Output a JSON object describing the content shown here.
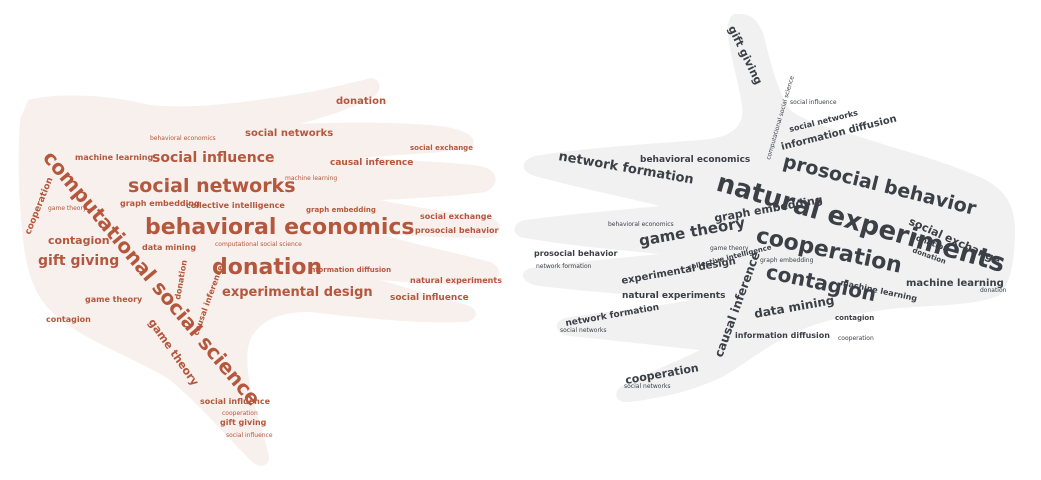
{
  "left_cloud": {
    "color": "#b5573d",
    "background": "#f8f0ed",
    "words": [
      {
        "text": "computational social science"
      },
      {
        "text": "behavioral economics"
      },
      {
        "text": "social networks"
      },
      {
        "text": "donation"
      },
      {
        "text": "social influence"
      },
      {
        "text": "experimental design"
      },
      {
        "text": "gift giving"
      },
      {
        "text": "contagion"
      },
      {
        "text": "game theory"
      },
      {
        "text": "cooperation"
      },
      {
        "text": "social networks"
      },
      {
        "text": "donation"
      },
      {
        "text": "social influence"
      },
      {
        "text": "collective intelligence"
      },
      {
        "text": "graph embedding"
      },
      {
        "text": "causal inference"
      },
      {
        "text": "machine learning"
      },
      {
        "text": "data mining"
      },
      {
        "text": "social exchange"
      },
      {
        "text": "prosocial behavior"
      },
      {
        "text": "natural experiments"
      },
      {
        "text": "information diffusion"
      },
      {
        "text": "game theory"
      },
      {
        "text": "contagion"
      },
      {
        "text": "social influence"
      },
      {
        "text": "gift giving"
      },
      {
        "text": "causal inference"
      },
      {
        "text": "social exchange"
      },
      {
        "text": "graph embedding"
      },
      {
        "text": "behavioral economics"
      },
      {
        "text": "computational social science"
      },
      {
        "text": "machine learning"
      },
      {
        "text": "donation"
      },
      {
        "text": "game theory"
      },
      {
        "text": "cooperation"
      },
      {
        "text": "social influence"
      }
    ]
  },
  "right_cloud": {
    "color": "#3b3f46",
    "background": "#f1f1f2",
    "words": [
      {
        "text": "natural experiments"
      },
      {
        "text": "cooperation"
      },
      {
        "text": "prosocial behavior"
      },
      {
        "text": "contagion"
      },
      {
        "text": "game theory"
      },
      {
        "text": "network formation"
      },
      {
        "text": "graph embedding"
      },
      {
        "text": "behavioral economics"
      },
      {
        "text": "social exchange"
      },
      {
        "text": "machine learning"
      },
      {
        "text": "data mining"
      },
      {
        "text": "causal inference"
      },
      {
        "text": "experimental design"
      },
      {
        "text": "natural experiments"
      },
      {
        "text": "network formation"
      },
      {
        "text": "cooperation"
      },
      {
        "text": "information diffusion"
      },
      {
        "text": "social networks"
      },
      {
        "text": "gift giving"
      },
      {
        "text": "prosocial behavior"
      },
      {
        "text": "collective intelligence"
      },
      {
        "text": "donation"
      },
      {
        "text": "information diffusion"
      },
      {
        "text": "social networks"
      },
      {
        "text": "machine learning"
      },
      {
        "text": "contagion"
      },
      {
        "text": "donation"
      },
      {
        "text": "behavioral economics"
      },
      {
        "text": "computational social science"
      },
      {
        "text": "game theory"
      },
      {
        "text": "social influence"
      },
      {
        "text": "network formation"
      },
      {
        "text": "social networks"
      },
      {
        "text": "cooperation"
      },
      {
        "text": "graph embedding"
      },
      {
        "text": "donation"
      }
    ]
  }
}
